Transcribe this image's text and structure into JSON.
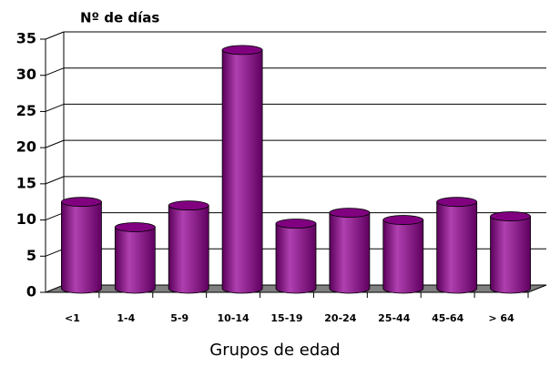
{
  "chart_data": {
    "type": "bar",
    "title": "Nº de días",
    "x_label": "Grupos de edad",
    "categories": [
      "<1",
      "1-4",
      "5-9",
      "10-14",
      "15-19",
      "20-24",
      "25-44",
      "45-64",
      "> 64"
    ],
    "values": [
      12,
      8.5,
      11.5,
      33,
      9,
      10.5,
      9.5,
      12,
      10
    ],
    "color": "#800080",
    "ylim": [
      0,
      35
    ],
    "yticks": [
      0,
      5,
      10,
      15,
      20,
      25,
      30,
      35
    ],
    "grid": true
  }
}
